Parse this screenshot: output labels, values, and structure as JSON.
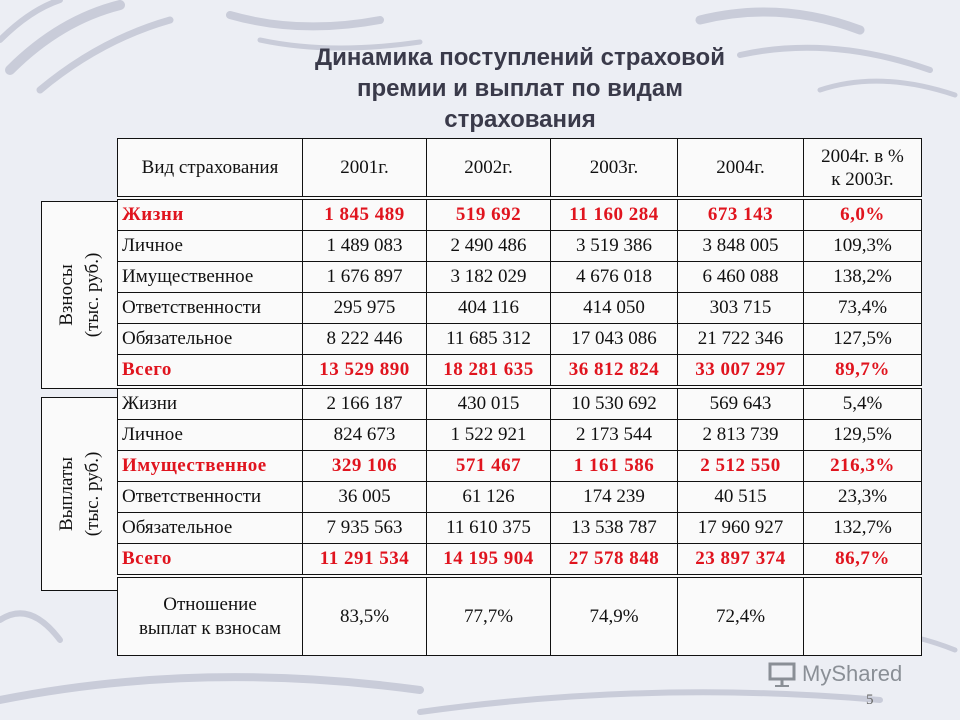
{
  "title_lines": [
    "Динамика поступлений страховой",
    "премии и выплат  по видам",
    "страхования"
  ],
  "header": {
    "type": "Вид страхования",
    "y2001": "2001г.",
    "y2002": "2002г.",
    "y2003": "2003г.",
    "y2004": "2004г.",
    "pct_line1": "2004г. в %",
    "pct_line2": "к 2003г."
  },
  "contributions": {
    "side_label": [
      "Взносы",
      "(тыс. руб.)"
    ],
    "rows": [
      {
        "type": "Жизни",
        "y2001": "1 845 489",
        "y2002": "519 692",
        "y2003": "11 160 284",
        "y2004": "673 143",
        "pct": "6,0%"
      },
      {
        "type": "Личное",
        "y2001": "1 489 083",
        "y2002": "2 490 486",
        "y2003": "3 519 386",
        "y2004": "3 848 005",
        "pct": "109,3%"
      },
      {
        "type": "Имущественное",
        "y2001": "1 676 897",
        "y2002": "3 182 029",
        "y2003": "4 676 018",
        "y2004": "6 460 088",
        "pct": "138,2%"
      },
      {
        "type": "Ответственности",
        "y2001": "295 975",
        "y2002": "404 116",
        "y2003": "414 050",
        "y2004": "303 715",
        "pct": "73,4%"
      },
      {
        "type": "Обязательное",
        "y2001": "8 222 446",
        "y2002": "11 685 312",
        "y2003": "17 043 086",
        "y2004": "21 722 346",
        "pct": "127,5%"
      },
      {
        "type": "Всего",
        "y2001": "13 529 890",
        "y2002": "18 281 635",
        "y2003": "36 812 824",
        "y2004": "33 007 297",
        "pct": "89,7%"
      }
    ]
  },
  "payments": {
    "side_label": [
      "Выплаты",
      "(тыс. руб.)"
    ],
    "rows": [
      {
        "type": "Жизни",
        "y2001": "2 166 187",
        "y2002": "430 015",
        "y2003": "10 530 692",
        "y2004": "569 643",
        "pct": "5,4%"
      },
      {
        "type": "Личное",
        "y2001": "824 673",
        "y2002": "1 522 921",
        "y2003": "2 173 544",
        "y2004": "2 813 739",
        "pct": "129,5%"
      },
      {
        "type": "Имущественное",
        "y2001": "329 106",
        "y2002": "571 467",
        "y2003": "1 161 586",
        "y2004": "2 512 550",
        "pct": "216,3%"
      },
      {
        "type": "Ответственности",
        "y2001": "36 005",
        "y2002": "61 126",
        "y2003": "174 239",
        "y2004": "40 515",
        "pct": "23,3%"
      },
      {
        "type": "Обязательное",
        "y2001": "7 935 563",
        "y2002": "11 610 375",
        "y2003": "13 538 787",
        "y2004": "17 960 927",
        "pct": "132,7%"
      },
      {
        "type": "Всего",
        "y2001": "11 291 534",
        "y2002": "14 195 904",
        "y2003": "27 578 848",
        "y2004": "23 897 374",
        "pct": "86,7%"
      }
    ]
  },
  "ratio": {
    "label_line1": "Отношение",
    "label_line2": "выплат к взносам",
    "y2001": "83,5%",
    "y2002": "77,7%",
    "y2003": "74,9%",
    "y2004": "72,4%"
  },
  "logo_text": "MyShared",
  "page_number": "5",
  "colors": {
    "highlight": "#e0141e",
    "text": "#111111",
    "background": "#eceef4"
  }
}
